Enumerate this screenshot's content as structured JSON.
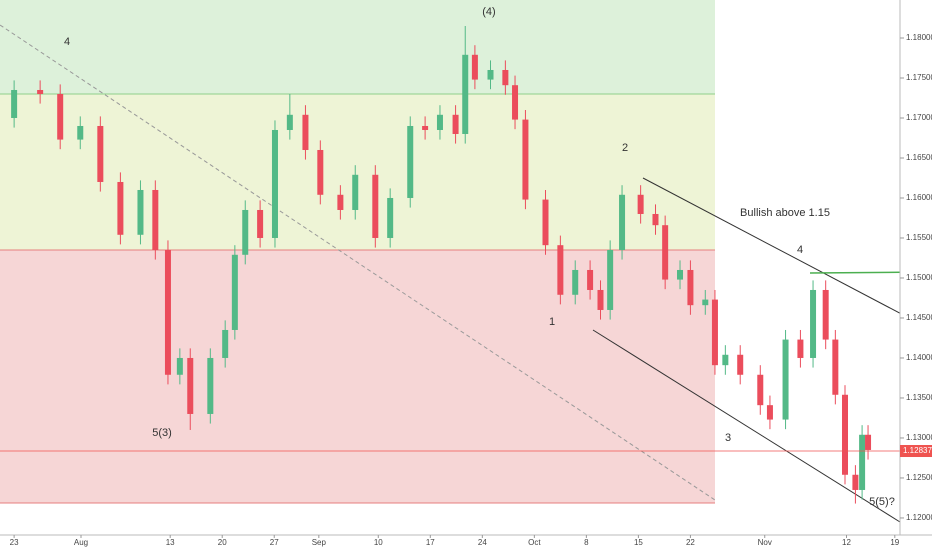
{
  "chart_data": {
    "type": "candlestick",
    "x": [
      0,
      3.5,
      6.2,
      8.9,
      11.6,
      14.3,
      17,
      19,
      20.7,
      22.3,
      23.7,
      26.4,
      28.4,
      29.7,
      31.1,
      33.1,
      35.1,
      37.1,
      39.2,
      41.2,
      43.9,
      45.9,
      48.6,
      50.6,
      53.3,
      55.3,
      57.3,
      59.4,
      60.7,
      62,
      64.1,
      66.1,
      67.4,
      68.8,
      71.5,
      73.5,
      75.5,
      77.5,
      78.9,
      80.2,
      81.8,
      84.3,
      86.3,
      87.6,
      89.6,
      91,
      93,
      94.3,
      95.7,
      97.7,
      100.4,
      101.7,
      103.8,
      105.8,
      107.5,
      109.2,
      110.5,
      111.8,
      113.2,
      114.1,
      114.9
    ],
    "open": [
      1.17,
      1.1735,
      1.173,
      1.1673,
      1.169,
      1.162,
      1.1554,
      1.161,
      1.1535,
      1.1379,
      1.14,
      1.133,
      1.14,
      1.1435,
      1.1529,
      1.1585,
      1.155,
      1.1685,
      1.1704,
      1.166,
      1.1604,
      1.1585,
      1.1629,
      1.155,
      1.16,
      1.169,
      1.1685,
      1.1704,
      1.168,
      1.1779,
      1.1748,
      1.176,
      1.1741,
      1.1698,
      1.1598,
      1.1541,
      1.1479,
      1.151,
      1.1485,
      1.146,
      1.1535,
      1.1604,
      1.158,
      1.1566,
      1.1498,
      1.151,
      1.1466,
      1.1473,
      1.1391,
      1.1404,
      1.1379,
      1.1341,
      1.1323,
      1.1423,
      1.14,
      1.1485,
      1.1423,
      1.1354,
      1.1254,
      1.1235,
      1.1304
    ],
    "high": [
      1.1747,
      1.1747,
      1.1742,
      1.1702,
      1.1702,
      1.1632,
      1.1622,
      1.1622,
      1.1547,
      1.1412,
      1.1412,
      1.1412,
      1.1447,
      1.1541,
      1.1597,
      1.1597,
      1.1697,
      1.173,
      1.1716,
      1.1672,
      1.1616,
      1.1641,
      1.1641,
      1.1612,
      1.1702,
      1.1702,
      1.1716,
      1.1716,
      1.1815,
      1.1791,
      1.1772,
      1.1772,
      1.1753,
      1.171,
      1.161,
      1.1553,
      1.1522,
      1.1522,
      1.1497,
      1.1547,
      1.1616,
      1.1616,
      1.1592,
      1.1578,
      1.1522,
      1.1522,
      1.1485,
      1.1485,
      1.1416,
      1.1416,
      1.1391,
      1.1353,
      1.1435,
      1.1435,
      1.1497,
      1.1497,
      1.1435,
      1.1366,
      1.1266,
      1.1316,
      1.1316
    ],
    "low": [
      1.1688,
      1.1718,
      1.1661,
      1.1661,
      1.1608,
      1.1542,
      1.1542,
      1.1523,
      1.1367,
      1.1367,
      1.131,
      1.1318,
      1.1388,
      1.1423,
      1.1517,
      1.1538,
      1.1538,
      1.1673,
      1.1648,
      1.1592,
      1.1573,
      1.1573,
      1.1538,
      1.1538,
      1.1588,
      1.1673,
      1.1673,
      1.1668,
      1.1668,
      1.1736,
      1.1736,
      1.1729,
      1.1686,
      1.1586,
      1.1529,
      1.1467,
      1.1467,
      1.1473,
      1.1448,
      1.1448,
      1.1523,
      1.1568,
      1.1554,
      1.1486,
      1.1486,
      1.1454,
      1.1454,
      1.1379,
      1.1379,
      1.1367,
      1.1329,
      1.1311,
      1.1311,
      1.1388,
      1.1388,
      1.1411,
      1.1342,
      1.1242,
      1.1218,
      1.1223,
      1.1273
    ],
    "close": [
      1.1735,
      1.173,
      1.1673,
      1.169,
      1.162,
      1.1554,
      1.161,
      1.1535,
      1.1379,
      1.14,
      1.133,
      1.14,
      1.1435,
      1.1529,
      1.1585,
      1.155,
      1.1685,
      1.1704,
      1.166,
      1.1604,
      1.1585,
      1.1629,
      1.155,
      1.16,
      1.169,
      1.1685,
      1.1704,
      1.168,
      1.1779,
      1.1748,
      1.176,
      1.1741,
      1.1698,
      1.1598,
      1.1541,
      1.1479,
      1.151,
      1.1485,
      1.146,
      1.1535,
      1.1604,
      1.158,
      1.1566,
      1.1498,
      1.151,
      1.1466,
      1.1473,
      1.1391,
      1.1404,
      1.1379,
      1.1341,
      1.1323,
      1.1423,
      1.14,
      1.1485,
      1.1423,
      1.1354,
      1.1254,
      1.1235,
      1.1304,
      1.1285
    ],
    "up_color": "#53b987",
    "down_color": "#eb4d5c",
    "last_price": 1.12837,
    "xlim": [
      -1.9,
      119.2
    ],
    "xticks": [
      {
        "value": 0,
        "label": "23"
      },
      {
        "value": 9,
        "label": "Aug"
      },
      {
        "value": 21,
        "label": "13"
      },
      {
        "value": 28,
        "label": "20"
      },
      {
        "value": 35,
        "label": "27"
      },
      {
        "value": 41,
        "label": "Sep"
      },
      {
        "value": 49,
        "label": "10"
      },
      {
        "value": 56,
        "label": "17"
      },
      {
        "value": 63,
        "label": "24"
      },
      {
        "value": 70,
        "label": "Oct"
      },
      {
        "value": 77,
        "label": "8"
      },
      {
        "value": 84,
        "label": "15"
      },
      {
        "value": 91,
        "label": "22"
      },
      {
        "value": 101,
        "label": "Nov"
      },
      {
        "value": 112,
        "label": "12"
      },
      {
        "value": 118.5,
        "label": "19"
      }
    ],
    "ylim": [
      1.11787,
      1.18475
    ],
    "yticks": [
      {
        "value": 1.12,
        "label": "1.12000"
      },
      {
        "value": 1.125,
        "label": "1.12500"
      },
      {
        "value": 1.13,
        "label": "1.13000"
      },
      {
        "value": 1.135,
        "label": "1.13500"
      },
      {
        "value": 1.14,
        "label": "1.14000"
      },
      {
        "value": 1.145,
        "label": "1.14500"
      },
      {
        "value": 1.15,
        "label": "1.15000"
      },
      {
        "value": 1.155,
        "label": "1.15500"
      },
      {
        "value": 1.16,
        "label": "1.16000"
      },
      {
        "value": 1.165,
        "label": "1.16500"
      },
      {
        "value": 1.17,
        "label": "1.17000"
      },
      {
        "value": 1.175,
        "label": "1.17500"
      },
      {
        "value": 1.18,
        "label": "1.18000"
      }
    ],
    "annotations": [
      "(4)",
      "4",
      "2",
      "Bullish above 1.15",
      "4",
      "1",
      "3",
      "5(3)",
      "5(5)?"
    ]
  }
}
